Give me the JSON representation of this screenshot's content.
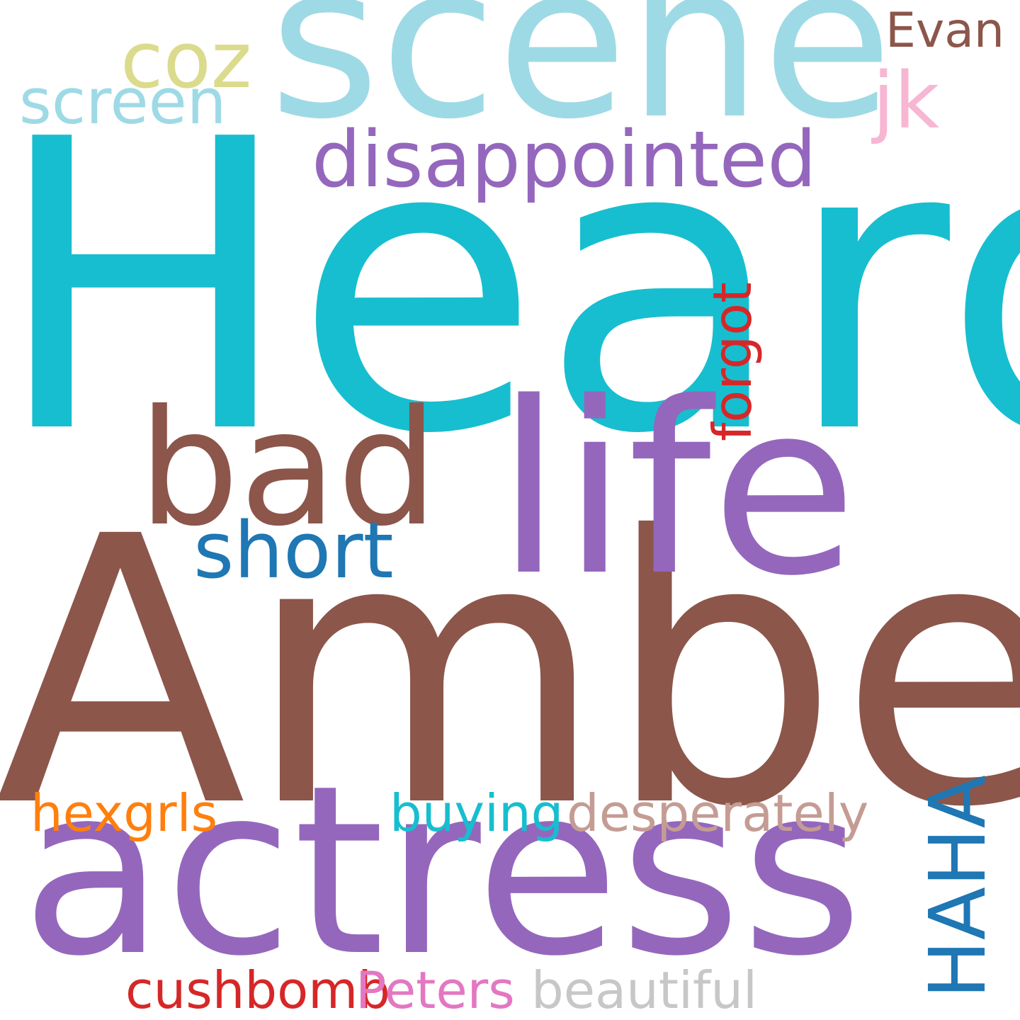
{
  "words": [
    {
      "key": "heard",
      "text": "Heard",
      "color": "#17becf"
    },
    {
      "key": "amber",
      "text": "Amber",
      "color": "#8c564b"
    },
    {
      "key": "actress",
      "text": "actress",
      "color": "#9467bd"
    },
    {
      "key": "scene",
      "text": "scene",
      "color": "#9edae5"
    },
    {
      "key": "life",
      "text": "life",
      "color": "#9467bd"
    },
    {
      "key": "bad",
      "text": "bad",
      "color": "#8c564b"
    },
    {
      "key": "disappointed",
      "text": "disappointed",
      "color": "#9467bd"
    },
    {
      "key": "short",
      "text": "short",
      "color": "#1f77b4"
    },
    {
      "key": "coz",
      "text": "coz",
      "color": "#dbdb8d"
    },
    {
      "key": "screen",
      "text": "screen",
      "color": "#9edae5"
    },
    {
      "key": "jk",
      "text": "jk",
      "color": "#f7b6d2"
    },
    {
      "key": "evan",
      "text": "Evan",
      "color": "#8c564b"
    },
    {
      "key": "forgot",
      "text": "forgot",
      "color": "#d62728",
      "orientation": "vertical"
    },
    {
      "key": "hexgrls",
      "text": "hexgrls",
      "color": "#ff7f0e"
    },
    {
      "key": "buying",
      "text": "buying",
      "color": "#17becf"
    },
    {
      "key": "desperately",
      "text": "desperately",
      "color": "#c49c94"
    },
    {
      "key": "haha",
      "text": "HAHA",
      "color": "#1f77b4",
      "orientation": "vertical"
    },
    {
      "key": "cushbomb",
      "text": "cushbomb",
      "color": "#d62728"
    },
    {
      "key": "peters",
      "text": "Peters",
      "color": "#e377c2"
    },
    {
      "key": "beautiful",
      "text": "beautiful",
      "color": "#c7c7c7"
    }
  ]
}
